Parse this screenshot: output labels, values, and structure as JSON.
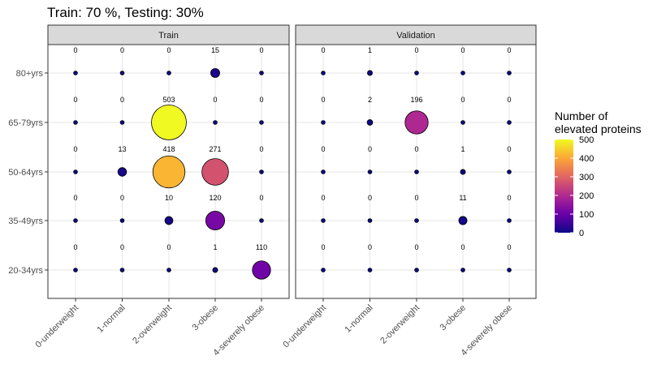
{
  "chart_data": {
    "type": "scatter",
    "title": "Train: 70 %, Testing: 30%",
    "x_categories": [
      "0-underweight",
      "1-normal",
      "2-overweight",
      "3-obese",
      "4-severely obese"
    ],
    "y_categories": [
      "20-34yrs",
      "35-49yrs",
      "50-64yrs",
      "65-79yrs",
      "80+yrs"
    ],
    "panels": [
      {
        "name": "Train",
        "values": [
          [
            0,
            0,
            0,
            1,
            110
          ],
          [
            0,
            0,
            10,
            120,
            0
          ],
          [
            0,
            13,
            418,
            271,
            0
          ],
          [
            0,
            0,
            503,
            0,
            0
          ],
          [
            0,
            0,
            0,
            15,
            0
          ]
        ]
      },
      {
        "name": "Validation",
        "values": [
          [
            0,
            0,
            0,
            0,
            0
          ],
          [
            0,
            0,
            0,
            11,
            0
          ],
          [
            0,
            0,
            0,
            1,
            0
          ],
          [
            0,
            2,
            196,
            0,
            0
          ],
          [
            0,
            1,
            0,
            0,
            0
          ]
        ]
      }
    ],
    "legend": {
      "title_lines": [
        "Number of",
        "elevated proteins"
      ],
      "ticks": [
        0,
        100,
        200,
        300,
        400,
        500
      ],
      "range": [
        0,
        500
      ],
      "position": "right"
    },
    "colorscale": [
      "#0d0887",
      "#6a00a8",
      "#b12a90",
      "#e16462",
      "#fca636",
      "#f0f921"
    ],
    "grid": true
  }
}
